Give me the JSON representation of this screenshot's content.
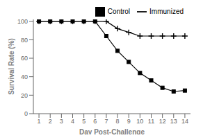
{
  "chart_data": {
    "type": "line",
    "x": [
      1,
      2,
      3,
      4,
      5,
      6,
      7,
      8,
      9,
      10,
      11,
      12,
      13,
      14
    ],
    "series": [
      {
        "name": "Control",
        "color": "#000000",
        "marker": "square",
        "values": [
          100,
          100,
          100,
          100,
          100,
          100,
          84,
          68,
          56,
          44,
          36,
          28,
          24,
          25
        ]
      },
      {
        "name": "Immunized",
        "color": "#000000",
        "marker": "plus",
        "values": [
          100,
          100,
          100,
          100,
          100,
          100,
          100,
          92,
          88,
          84,
          84,
          84,
          84,
          84
        ]
      }
    ],
    "xlabel": "Day Post-Challenge",
    "ylabel": "Survival Rate (%)",
    "xlim": [
      0.5,
      14.5
    ],
    "xticks": [
      1,
      2,
      3,
      4,
      5,
      6,
      7,
      8,
      9,
      10,
      11,
      12,
      13,
      14
    ],
    "ylim": [
      0,
      102
    ],
    "yticks": [
      0,
      20,
      40,
      60,
      80,
      100
    ],
    "legend": "upper right"
  }
}
